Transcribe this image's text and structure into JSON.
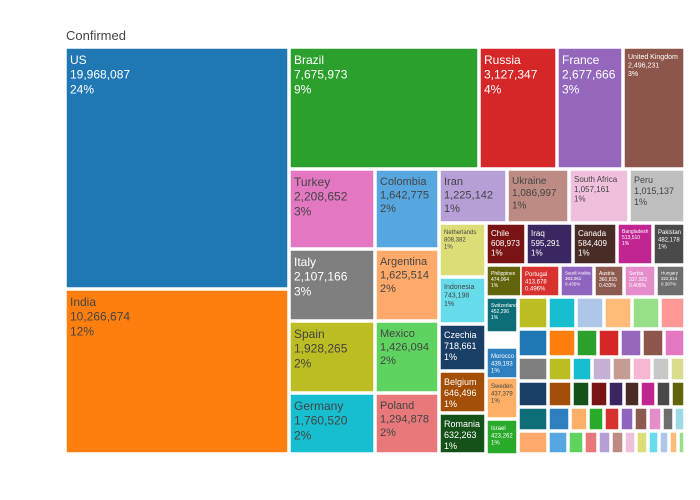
{
  "chart_data": {
    "type": "treemap",
    "title": "Confirmed",
    "tiles": [
      {
        "name": "US",
        "value": "19,968,087",
        "pct": "24%",
        "color": "#1f77b4",
        "light": true
      },
      {
        "name": "India",
        "value": "10,266,674",
        "pct": "12%",
        "color": "#ff7f0e",
        "light": false
      },
      {
        "name": "Brazil",
        "value": "7,675,973",
        "pct": "9%",
        "color": "#2ca02c",
        "light": true
      },
      {
        "name": "Russia",
        "value": "3,127,347",
        "pct": "4%",
        "color": "#d62728",
        "light": true
      },
      {
        "name": "France",
        "value": "2,677,666",
        "pct": "3%",
        "color": "#9467bd",
        "light": true
      },
      {
        "name": "United Kingdom",
        "value": "2,496,231",
        "pct": "3%",
        "color": "#8c564b",
        "light": true
      },
      {
        "name": "Turkey",
        "value": "2,208,652",
        "pct": "3%",
        "color": "#e377c2",
        "light": false
      },
      {
        "name": "Italy",
        "value": "2,107,166",
        "pct": "3%",
        "color": "#7f7f7f",
        "light": true
      },
      {
        "name": "Spain",
        "value": "1,928,265",
        "pct": "2%",
        "color": "#bcbd22",
        "light": false
      },
      {
        "name": "Germany",
        "value": "1,760,520",
        "pct": "2%",
        "color": "#17becf",
        "light": false
      },
      {
        "name": "Colombia",
        "value": "1,642,775",
        "pct": "2%",
        "color": "#56a6e0",
        "light": false
      },
      {
        "name": "Argentina",
        "value": "1,625,514",
        "pct": "2%",
        "color": "#ffaa6a",
        "light": false
      },
      {
        "name": "Mexico",
        "value": "1,426,094",
        "pct": "2%",
        "color": "#5fd35f",
        "light": false
      },
      {
        "name": "Poland",
        "value": "1,294,878",
        "pct": "2%",
        "color": "#e8787a",
        "light": false
      },
      {
        "name": "Iran",
        "value": "1,225,142",
        "pct": "1%",
        "color": "#b59fd6",
        "light": false
      },
      {
        "name": "Ukraine",
        "value": "1,086,997",
        "pct": "1%",
        "color": "#bd8b83",
        "light": false
      },
      {
        "name": "South Africa",
        "value": "1,057,161",
        "pct": "1%",
        "color": "#f0bfdc",
        "light": false
      },
      {
        "name": "Peru",
        "value": "1,015,137",
        "pct": "1%",
        "color": "#bebebe",
        "light": false
      },
      {
        "name": "Netherlands",
        "value": "808,382",
        "pct": "1%",
        "color": "#dcdd77",
        "light": false
      },
      {
        "name": "Indonesia",
        "value": "743,198",
        "pct": "1%",
        "color": "#66dcea",
        "light": false
      },
      {
        "name": "Czechia",
        "value": "718,661",
        "pct": "1%",
        "color": "#1a3f66",
        "light": true
      },
      {
        "name": "Belgium",
        "value": "646,496",
        "pct": "1%",
        "color": "#a34f07",
        "light": true
      },
      {
        "name": "Romania",
        "value": "632,263",
        "pct": "1%",
        "color": "#14521a",
        "light": true
      },
      {
        "name": "Chile",
        "value": "608,973",
        "pct": "1%",
        "color": "#7a1414",
        "light": true
      },
      {
        "name": "Iraq",
        "value": "595,291",
        "pct": "1%",
        "color": "#3a2660",
        "light": true
      },
      {
        "name": "Canada",
        "value": "584,409",
        "pct": "1%",
        "color": "#4a2c27",
        "light": true
      },
      {
        "name": "Bangladesh",
        "value": "513,510",
        "pct": "1%",
        "color": "#c02590",
        "light": true
      },
      {
        "name": "Pakistan",
        "value": "482,178",
        "pct": "1%",
        "color": "#4a4a4a",
        "light": true
      },
      {
        "name": "Philippines",
        "value": "474,064",
        "pct": "1%",
        "color": "#62640c",
        "light": true
      },
      {
        "name": "Switzerland",
        "value": "452,296",
        "pct": "1%",
        "color": "#0e6e78",
        "light": true
      },
      {
        "name": "Morocco",
        "value": "439,193",
        "pct": "1%",
        "color": "#2e7fbf",
        "light": true
      },
      {
        "name": "Sweden",
        "value": "437,379",
        "pct": "1%",
        "color": "#ffb066",
        "light": false
      },
      {
        "name": "Israel",
        "value": "423,262",
        "pct": "1%",
        "color": "#2aaa2a",
        "light": true
      },
      {
        "name": "Portugal",
        "value": "413,678",
        "pct": "0.496%",
        "color": "#d8312f",
        "light": true
      },
      {
        "name": "Saudi Arabia",
        "value": "363,061",
        "pct": "0.435%",
        "color": "#8f64bf",
        "light": true
      },
      {
        "name": "Austria",
        "value": "360,815",
        "pct": "0.433%",
        "color": "#8d5a50",
        "light": true
      },
      {
        "name": "Serbia",
        "value": "337,923",
        "pct": "0.405%",
        "color": "#e58ccb",
        "light": true
      },
      {
        "name": "Hungary",
        "value": "322,514",
        "pct": "0.387%",
        "color": "#6e6e6e",
        "light": true
      }
    ]
  }
}
